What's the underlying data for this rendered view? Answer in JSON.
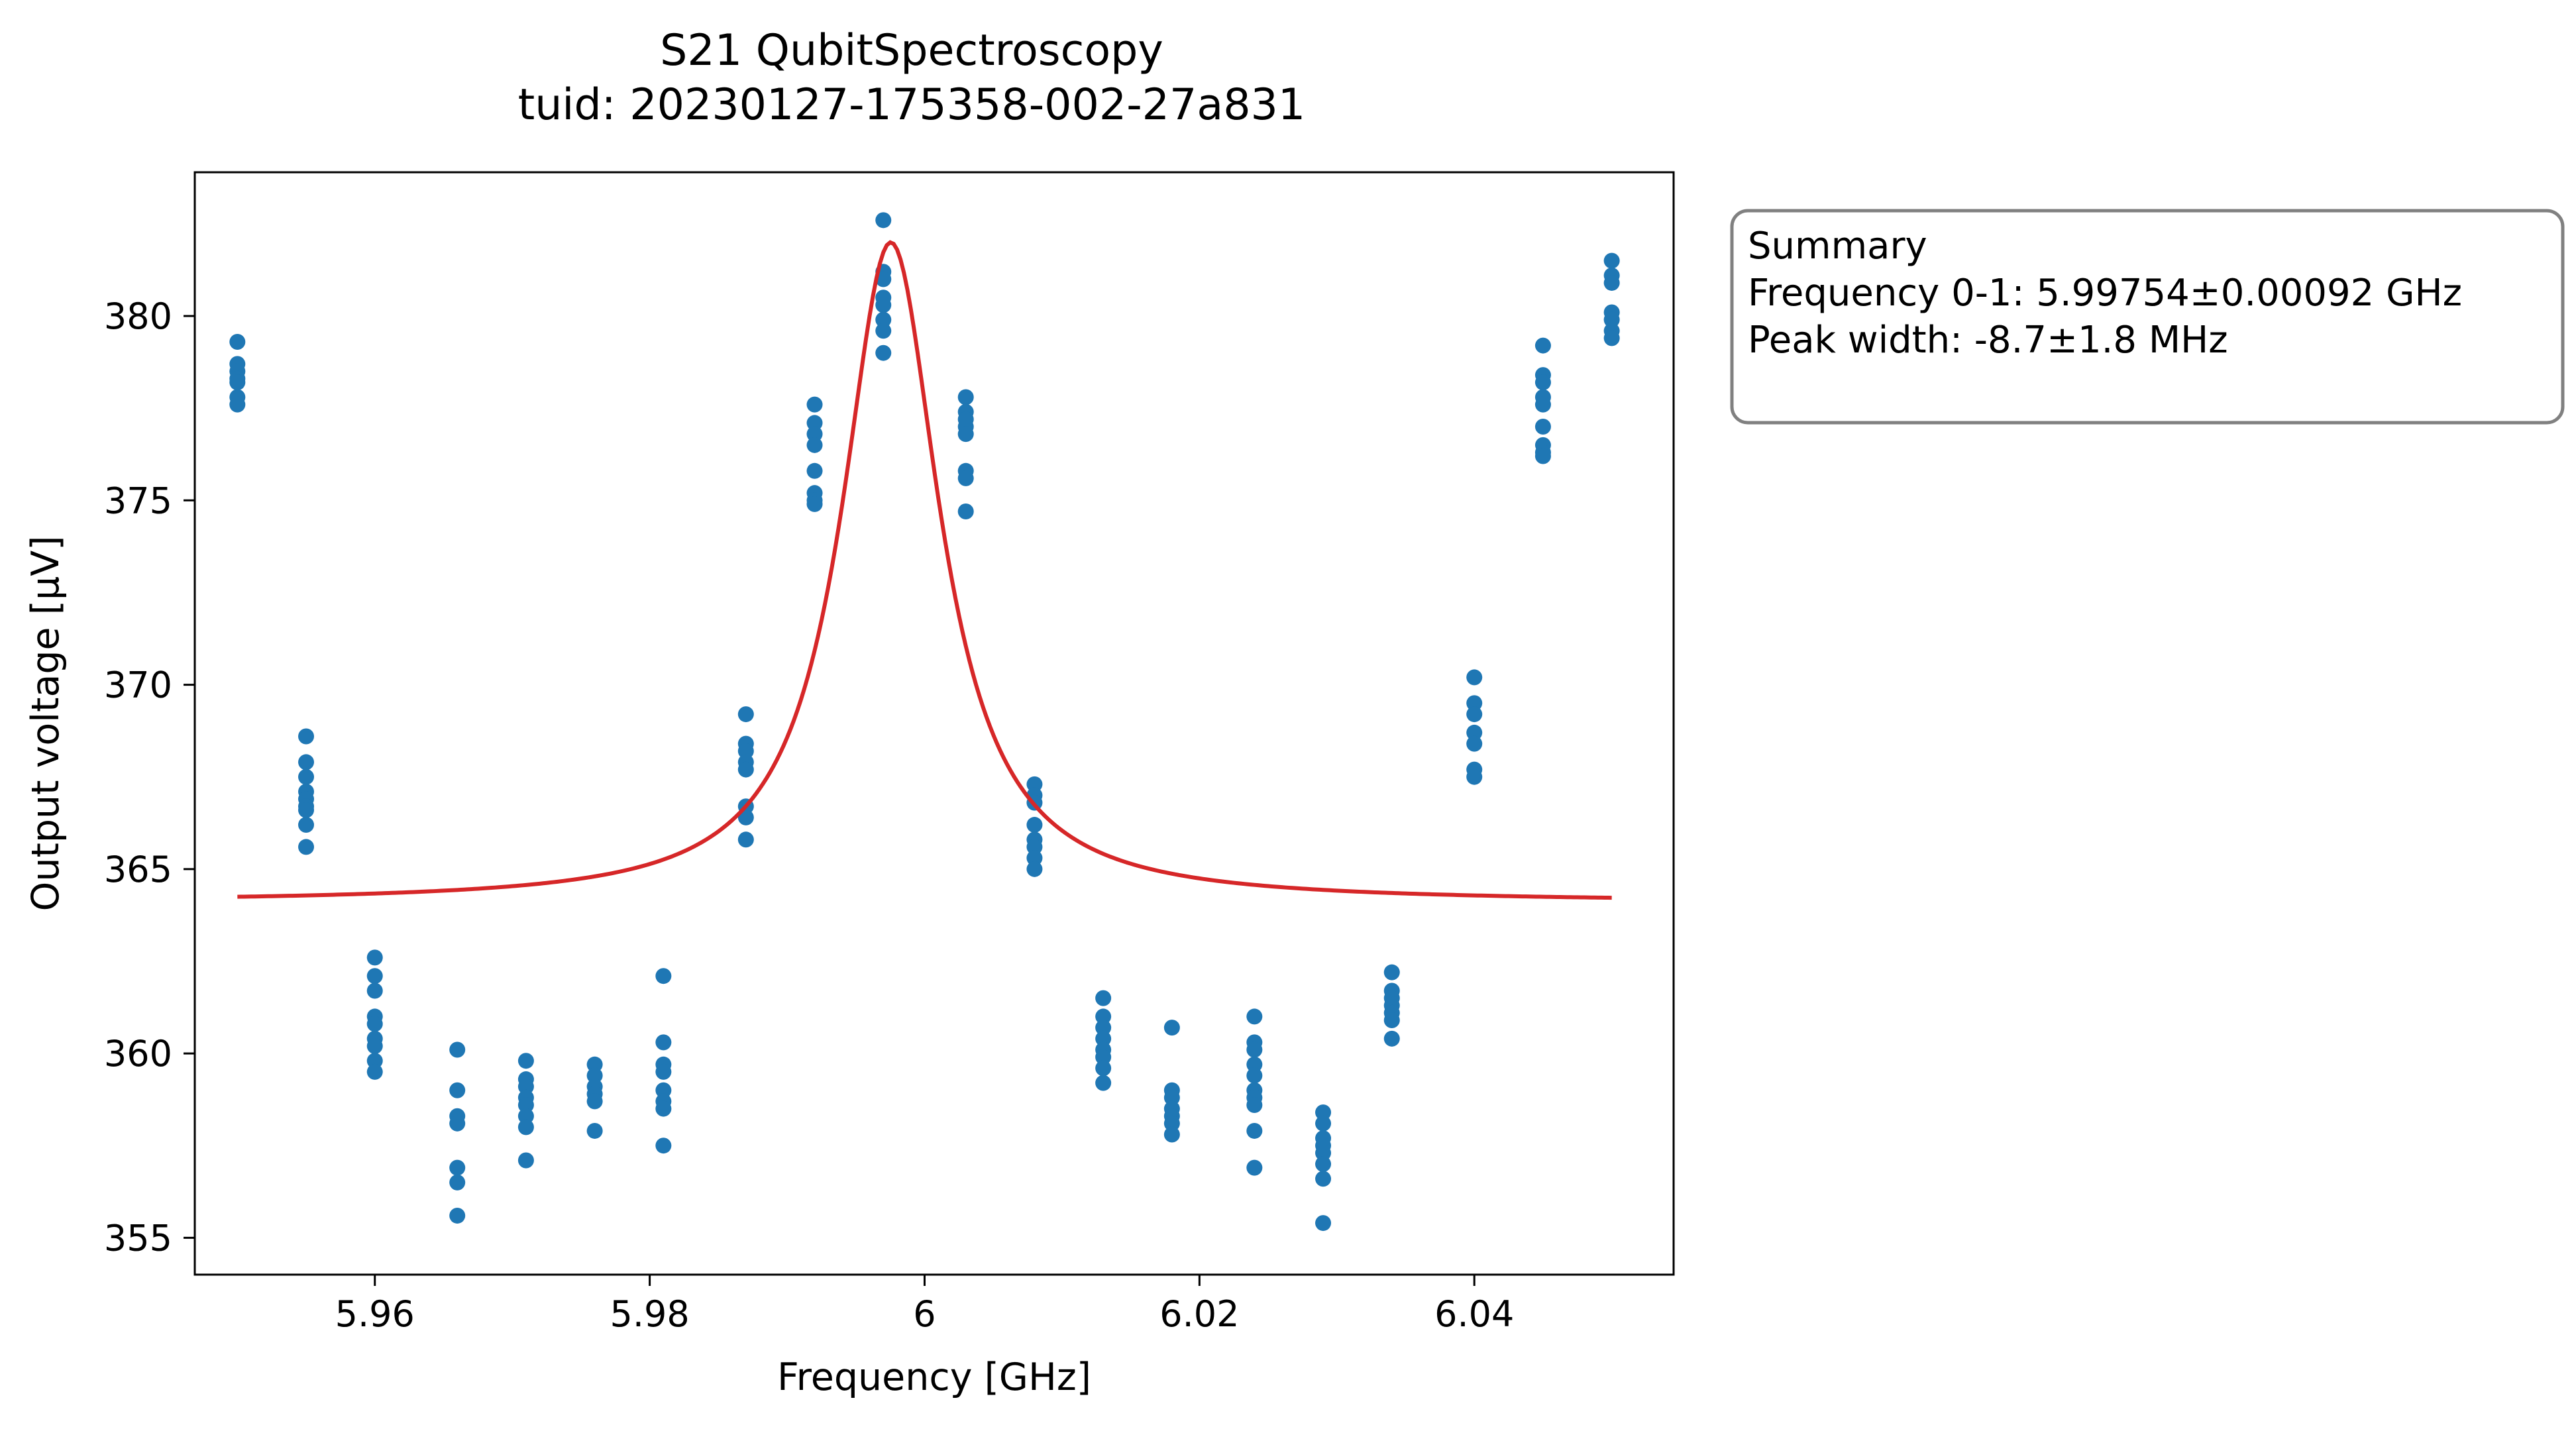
{
  "chart_data": {
    "type": "scatter",
    "title": "S21 QubitSpectroscopy",
    "subtitle": "tuid: 20230127-175358-002-27a831",
    "xlabel": "Frequency [GHz]",
    "ylabel": "Output voltage [μV]",
    "xlim": [
      5.9469,
      6.0545
    ],
    "ylim": [
      354.0,
      383.9
    ],
    "x_ticks": [
      {
        "value": 5.96,
        "label": "5.96"
      },
      {
        "value": 5.98,
        "label": "5.98"
      },
      {
        "value": 6.0,
        "label": "6"
      },
      {
        "value": 6.02,
        "label": "6.02"
      },
      {
        "value": 6.04,
        "label": "6.04"
      }
    ],
    "y_ticks": [
      {
        "value": 355,
        "label": "355"
      },
      {
        "value": 360,
        "label": "360"
      },
      {
        "value": 365,
        "label": "365"
      },
      {
        "value": 370,
        "label": "370"
      },
      {
        "value": 375,
        "label": "375"
      },
      {
        "value": 380,
        "label": "380"
      }
    ],
    "grid": false,
    "series": [
      {
        "type": "scatter",
        "color": "#1f77b4",
        "points": [
          {
            "x": 5.95,
            "y": [
              379.3,
              378.7,
              378.5,
              378.3,
              378.2,
              377.8,
              377.6
            ]
          },
          {
            "x": 5.955,
            "y": [
              368.6,
              367.9,
              367.5,
              367.1,
              366.9,
              366.7,
              366.6,
              366.2,
              365.6
            ]
          },
          {
            "x": 5.96,
            "y": [
              362.6,
              362.1,
              361.7,
              361.0,
              360.8,
              360.4,
              360.2,
              359.8,
              359.5
            ]
          },
          {
            "x": 5.966,
            "y": [
              360.1,
              359.0,
              358.3,
              358.1,
              356.9,
              356.5,
              355.6
            ]
          },
          {
            "x": 5.971,
            "y": [
              359.8,
              359.3,
              359.1,
              358.8,
              358.6,
              358.3,
              358.0,
              357.1
            ]
          },
          {
            "x": 5.976,
            "y": [
              359.7,
              359.4,
              359.1,
              358.9,
              358.7,
              357.9
            ]
          },
          {
            "x": 5.981,
            "y": [
              362.1,
              360.3,
              359.7,
              359.5,
              359.0,
              358.7,
              358.5,
              357.5
            ]
          },
          {
            "x": 5.987,
            "y": [
              369.2,
              368.4,
              368.2,
              367.9,
              367.7,
              366.7,
              366.4,
              365.8
            ]
          },
          {
            "x": 5.992,
            "y": [
              377.6,
              377.1,
              376.8,
              376.5,
              375.8,
              375.2,
              375.0,
              374.9
            ]
          },
          {
            "x": 5.997,
            "y": [
              382.6,
              381.2,
              381.0,
              380.5,
              380.3,
              379.9,
              379.6,
              379.0
            ]
          },
          {
            "x": 6.003,
            "y": [
              377.8,
              377.4,
              377.2,
              377.0,
              376.8,
              375.8,
              375.6,
              374.7
            ]
          },
          {
            "x": 6.008,
            "y": [
              367.3,
              367.0,
              366.8,
              366.2,
              365.8,
              365.6,
              365.3,
              365.0
            ]
          },
          {
            "x": 6.013,
            "y": [
              361.5,
              361.0,
              360.7,
              360.4,
              360.1,
              359.9,
              359.6,
              359.2
            ]
          },
          {
            "x": 6.018,
            "y": [
              360.7,
              359.0,
              358.8,
              358.5,
              358.3,
              358.1,
              357.8
            ]
          },
          {
            "x": 6.024,
            "y": [
              361.0,
              360.3,
              360.1,
              359.7,
              359.4,
              359.0,
              358.8,
              358.6,
              357.9,
              356.9
            ]
          },
          {
            "x": 6.029,
            "y": [
              358.4,
              358.1,
              357.7,
              357.5,
              357.3,
              357.0,
              356.6,
              355.4
            ]
          },
          {
            "x": 6.034,
            "y": [
              362.2,
              361.7,
              361.5,
              361.3,
              361.1,
              360.9,
              360.4
            ]
          },
          {
            "x": 6.04,
            "y": [
              370.2,
              369.5,
              369.2,
              368.7,
              368.4,
              367.7,
              367.5
            ]
          },
          {
            "x": 6.045,
            "y": [
              379.2,
              378.4,
              378.2,
              377.8,
              377.6,
              377.0,
              376.5,
              376.3,
              376.2
            ]
          },
          {
            "x": 6.05,
            "y": [
              381.5,
              381.1,
              380.9,
              380.1,
              379.9,
              379.6,
              379.4
            ]
          }
        ]
      },
      {
        "type": "line",
        "color": "#d62728",
        "model": "lorentzian",
        "center": 5.99754,
        "hwhm": 0.00435,
        "offset": 364.1,
        "amplitude": 17.9,
        "x_range": [
          5.95,
          6.05
        ]
      }
    ]
  },
  "summary": {
    "title": "Summary",
    "frequency": "Frequency 0-1: 5.99754±0.00092 GHz",
    "peak_width": "Peak width: -8.7±1.8 MHz"
  }
}
